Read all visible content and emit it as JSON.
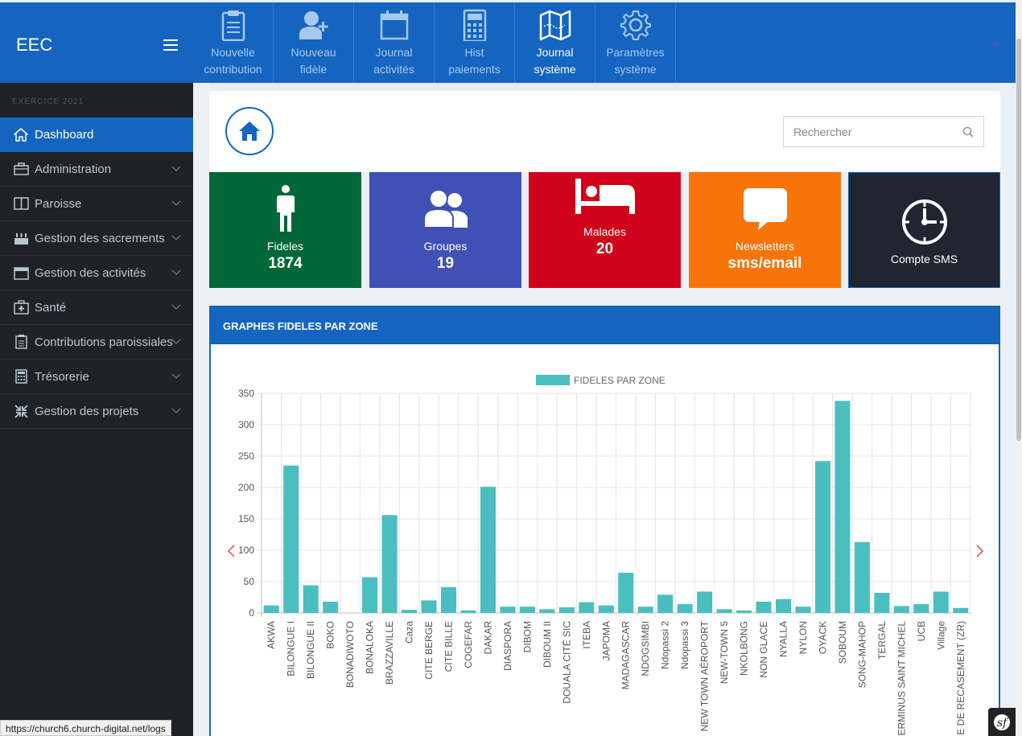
{
  "brand": {
    "name": "EEC"
  },
  "topnav": [
    {
      "label1": "Nouvelle",
      "label2": "contribution",
      "icon": "clipboard-icon",
      "active": false
    },
    {
      "label1": "Nouveau",
      "label2": "fidèle",
      "icon": "user-plus-icon",
      "active": false
    },
    {
      "label1": "Journal",
      "label2": "activités",
      "icon": "calendar-icon",
      "active": false
    },
    {
      "label1": "Hist",
      "label2": "paiements",
      "icon": "calculator-icon",
      "active": false
    },
    {
      "label1": "Journal",
      "label2": "système",
      "icon": "map-icon",
      "active": true
    },
    {
      "label1": "Paramètres",
      "label2": "système",
      "icon": "gear-icon",
      "active": false
    }
  ],
  "sidebar": {
    "header": "EXERCICE 2021",
    "items": [
      {
        "label": "Dashboard",
        "icon": "home-icon",
        "active": true
      },
      {
        "label": "Administration",
        "icon": "briefcase-icon"
      },
      {
        "label": "Paroisse",
        "icon": "book-icon"
      },
      {
        "label": "Gestion des sacrements",
        "icon": "cake-icon"
      },
      {
        "label": "Gestion des activités",
        "icon": "calendar-icon"
      },
      {
        "label": "Santé",
        "icon": "medkit-icon"
      },
      {
        "label": "Contributions paroissiales",
        "icon": "clipboard-icon"
      },
      {
        "label": "Trésorerie",
        "icon": "calculator-icon"
      },
      {
        "label": "Gestion des projets",
        "icon": "compress-icon"
      }
    ]
  },
  "search": {
    "placeholder": "Rechercher"
  },
  "cards": [
    {
      "title": "Fideles",
      "value": "1874",
      "color": "#006838",
      "icon": "person-icon"
    },
    {
      "title": "Groupes",
      "value": "19",
      "color": "#3f51b5",
      "icon": "users-icon"
    },
    {
      "title": "Malades",
      "value": "20",
      "color": "#d0021b",
      "icon": "bed-icon"
    },
    {
      "title": "Newsletters",
      "value": "sms/email",
      "color": "#f7740a",
      "icon": "comment-icon"
    },
    {
      "title": "Compte SMS",
      "value": "",
      "color": "#1f2531",
      "icon": "clock-icon"
    }
  ],
  "chart_panel": {
    "title": "GRAPHES FIDELES PAR ZONE"
  },
  "chart_data": {
    "type": "bar",
    "title": "",
    "xlabel": "",
    "ylabel": "",
    "ylim": [
      0,
      350
    ],
    "yticks": [
      0,
      50,
      100,
      150,
      200,
      250,
      300,
      350
    ],
    "grid": true,
    "legend_position": "top",
    "color": "#4bbfbf",
    "categories": [
      "AKWA",
      "BILONGUE I",
      "BILONGUE II",
      "BOKO",
      "BONADIWOTO",
      "BONALOKA",
      "BRAZZAVILLE",
      "Caza",
      "CITE BERGE",
      "CITE BILLE",
      "COGEFAR",
      "DAKAR",
      "DIASPORA",
      "DIBOM",
      "DIBOUM II",
      "DOUALA CITÉ SIC",
      "ITEBA",
      "JAPOMA",
      "MADAGASCAR",
      "NDOGSIMBI",
      "Ndopassi 2",
      "Ndopassi 3",
      "NEW TOWN AÉROPORT",
      "NEW-TOWN 5",
      "NKOLBONG",
      "NON GLACE",
      "NYALLA",
      "NYLON",
      "OYACK",
      "SOBOUM",
      "SONG-MAHOP",
      "TERGAL",
      "TERMINUS SAINT MICHEL",
      "UCB",
      "Village",
      "ZONE DE RECASEMENT (ZR)"
    ],
    "series": [
      {
        "name": "FIDELES PAR ZONE",
        "values": [
          12,
          235,
          44,
          18,
          0,
          57,
          156,
          5,
          20,
          41,
          4,
          201,
          10,
          10,
          6,
          9,
          17,
          12,
          64,
          10,
          29,
          14,
          34,
          6,
          4,
          18,
          22,
          10,
          242,
          338,
          113,
          32,
          11,
          14,
          34,
          8
        ]
      }
    ]
  },
  "status_url": "https://church6.church-digital.net/logs"
}
